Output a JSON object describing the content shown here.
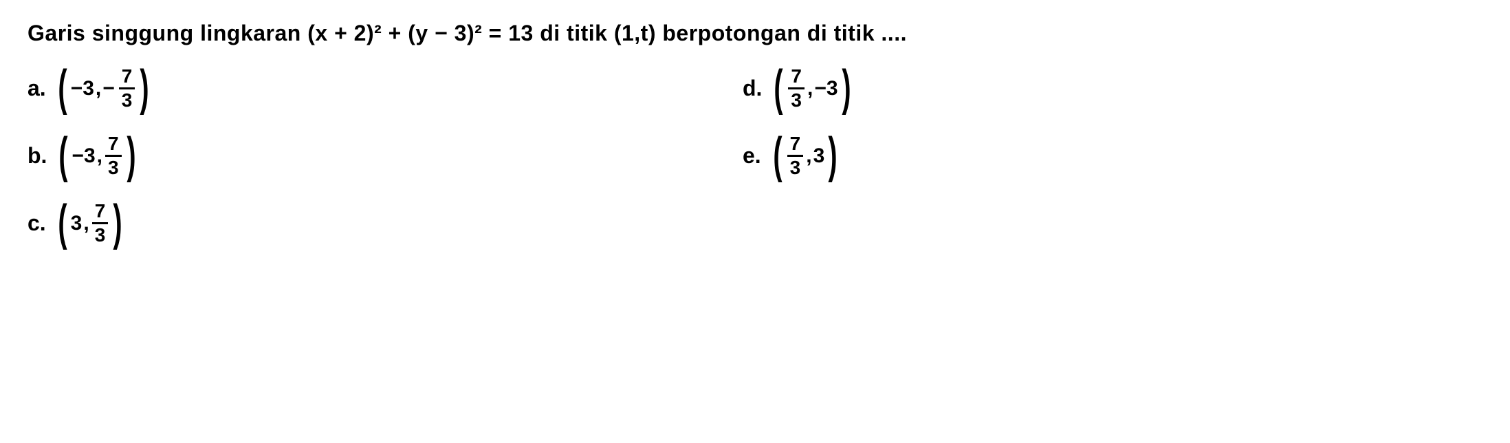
{
  "question": "Garis singgung lingkaran (x + 2)² + (y − 3)² = 13 di titik (1,t) berpotongan di titik ....",
  "options": {
    "a": {
      "label": "a.",
      "int_part": "−3",
      "frac_sign": "−",
      "frac_num": "7",
      "frac_den": "3",
      "format": "int_comma_frac"
    },
    "b": {
      "label": "b.",
      "int_part": "−3",
      "frac_sign": "",
      "frac_num": "7",
      "frac_den": "3",
      "format": "int_comma_frac"
    },
    "c": {
      "label": "c.",
      "int_part": "3",
      "frac_sign": "",
      "frac_num": "7",
      "frac_den": "3",
      "format": "int_comma_frac"
    },
    "d": {
      "label": "d.",
      "frac_num": "7",
      "frac_den": "3",
      "int_part": "−3",
      "format": "frac_comma_int"
    },
    "e": {
      "label": "e.",
      "frac_num": "7",
      "frac_den": "3",
      "int_part": "3",
      "format": "frac_comma_int"
    }
  },
  "colors": {
    "text": "#000000",
    "background": "#ffffff"
  },
  "typography": {
    "question_fontsize": 32,
    "option_fontsize": 32,
    "fraction_fontsize": 28,
    "font_weight": 700,
    "font_family": "Arial"
  }
}
